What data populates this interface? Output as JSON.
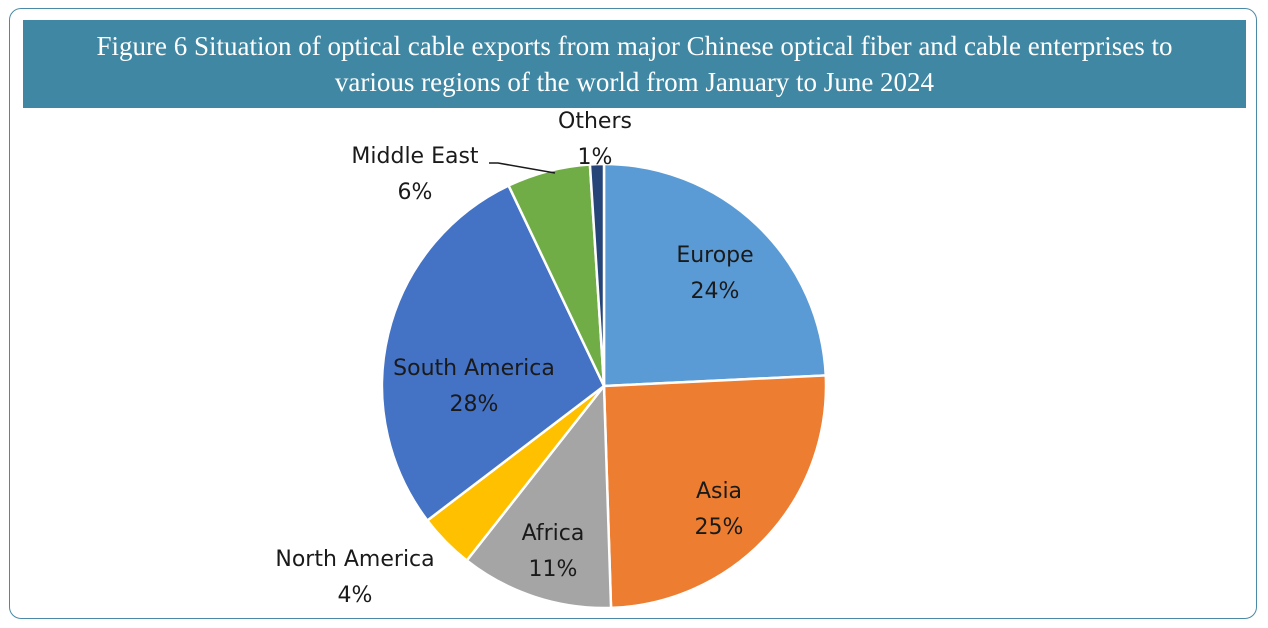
{
  "chart_data": {
    "type": "pie",
    "title": "Figure 6 Situation of optical cable exports from major Chinese optical fiber and cable enterprises to various regions of the world from January to June 2024",
    "slices": [
      {
        "label": "Europe",
        "value": 24,
        "value_label": "24%",
        "color": "#5b9bd5"
      },
      {
        "label": "Asia",
        "value": 25,
        "value_label": "25%",
        "color": "#ed7d31"
      },
      {
        "label": "Africa",
        "value": 11,
        "value_label": "11%",
        "color": "#a5a5a5"
      },
      {
        "label": "North America",
        "value": 4,
        "value_label": "4%",
        "color": "#ffc000"
      },
      {
        "label": "South America",
        "value": 28,
        "value_label": "28%",
        "color": "#4472c4"
      },
      {
        "label": "Middle East",
        "value": 6,
        "value_label": "6%",
        "color": "#70ad47"
      },
      {
        "label": "Others",
        "value": 1,
        "value_label": "1%",
        "color": "#264478"
      }
    ],
    "start_angle_deg": 0,
    "direction": "clockwise",
    "legend": "none"
  },
  "colors": {
    "title_bar": "#3f87a3",
    "frame_border": "#4a8aa6"
  }
}
